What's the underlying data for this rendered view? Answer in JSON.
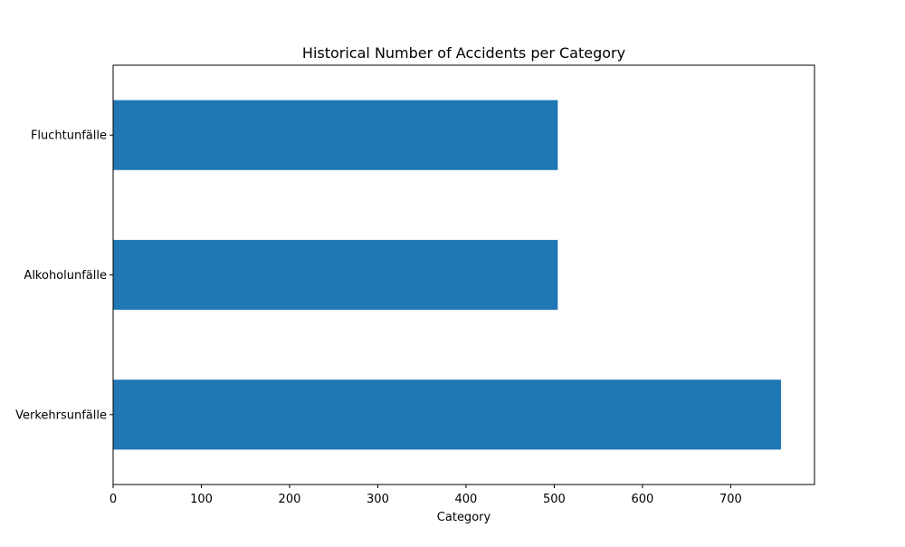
{
  "chart_data": {
    "type": "bar",
    "orientation": "horizontal",
    "title": "Historical Number of Accidents per Category",
    "xlabel": "Category",
    "ylabel": "",
    "categories": [
      "Verkehrsunfälle",
      "Alkoholunfälle",
      "Fluchtunfälle"
    ],
    "values": [
      757,
      504,
      504
    ],
    "xlim": [
      0,
      795
    ],
    "xticks": [
      0,
      100,
      200,
      300,
      400,
      500,
      600,
      700
    ],
    "grid": false,
    "legend": "none",
    "bar_color": "#1f77b4"
  }
}
